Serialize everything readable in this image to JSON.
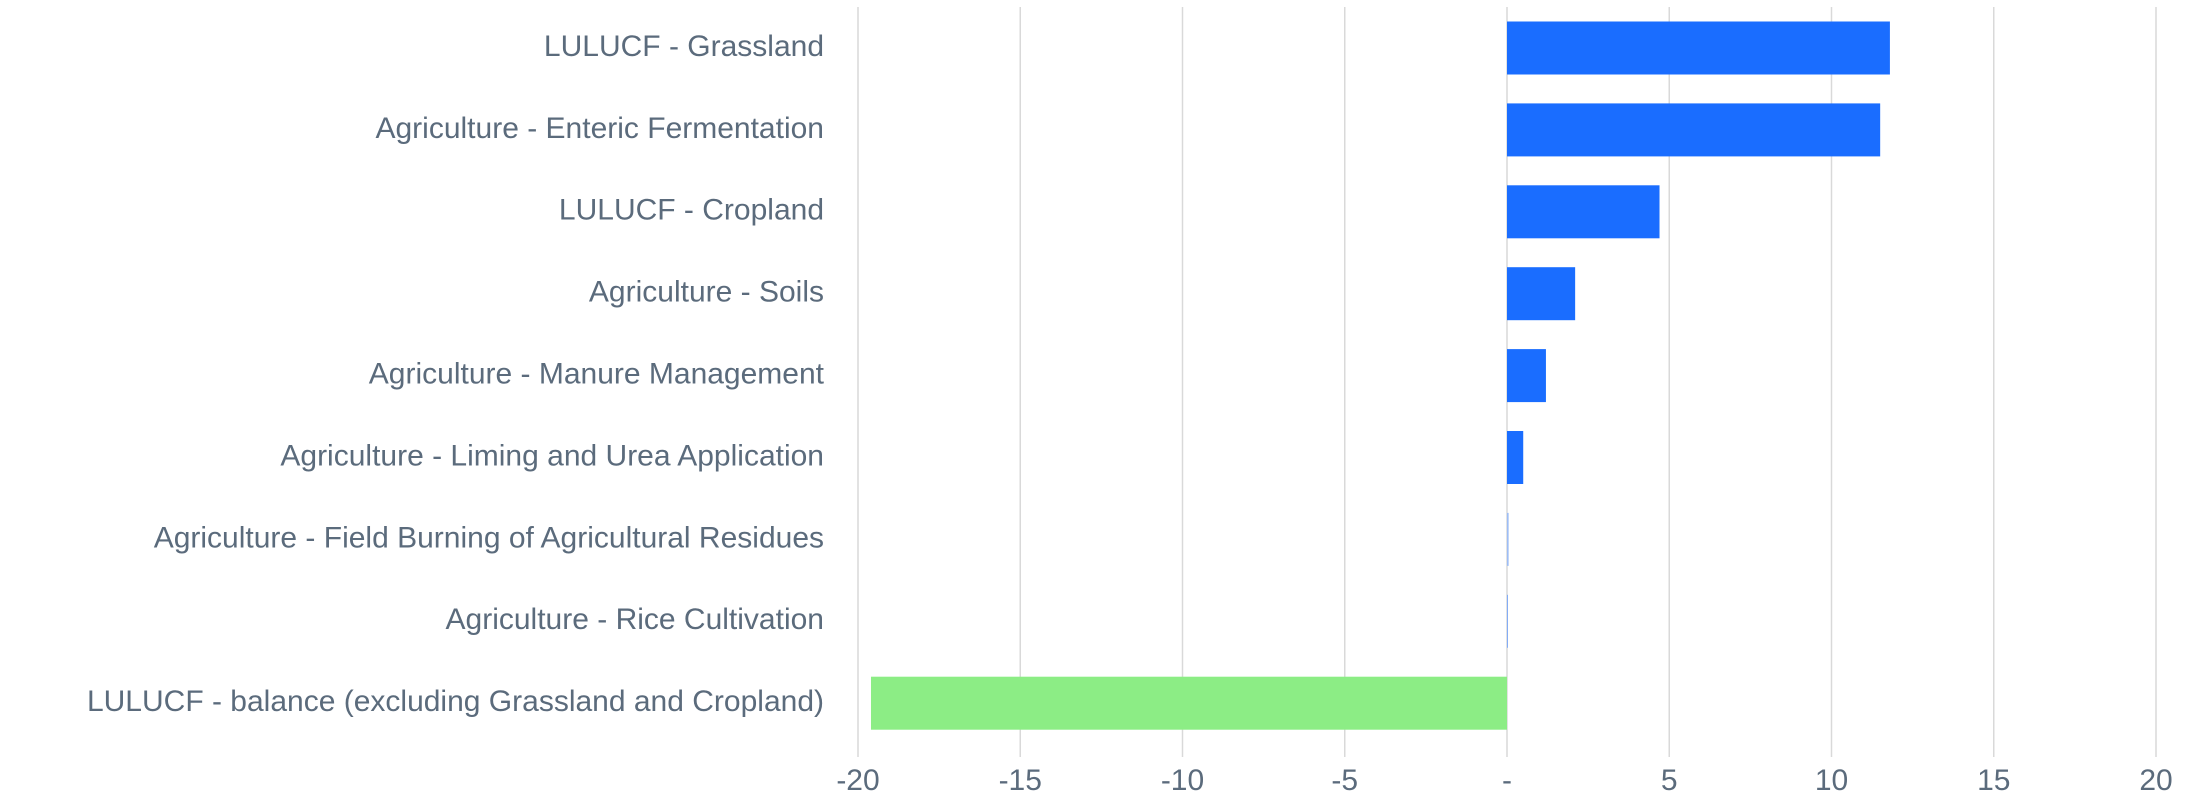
{
  "chart_data": {
    "type": "barh",
    "categories": [
      "LULUCF - Grassland",
      "Agriculture - Enteric Fermentation",
      "LULUCF - Cropland",
      "Agriculture - Soils",
      "Agriculture - Manure Management",
      "Agriculture - Liming and Urea Application",
      "Agriculture - Field Burning of Agricultural Residues",
      "Agriculture - Rice Cultivation",
      "LULUCF - balance (excluding Grassland and Cropland)"
    ],
    "values": [
      11.8,
      11.5,
      4.7,
      2.1,
      1.2,
      0.5,
      0.05,
      0,
      -19.6
    ],
    "colors": [
      "#1a6dff",
      "#1a6dff",
      "#1a6dff",
      "#1a6dff",
      "#1a6dff",
      "#1a6dff",
      "#9dbdf5",
      "#1a6dff",
      "#8ced85"
    ],
    "xlim": [
      -20,
      20
    ],
    "xticks": [
      -20,
      -15,
      -10,
      -5,
      {
        "value": 0,
        "label": "-"
      },
      5,
      10,
      15,
      20
    ],
    "grid": true
  }
}
